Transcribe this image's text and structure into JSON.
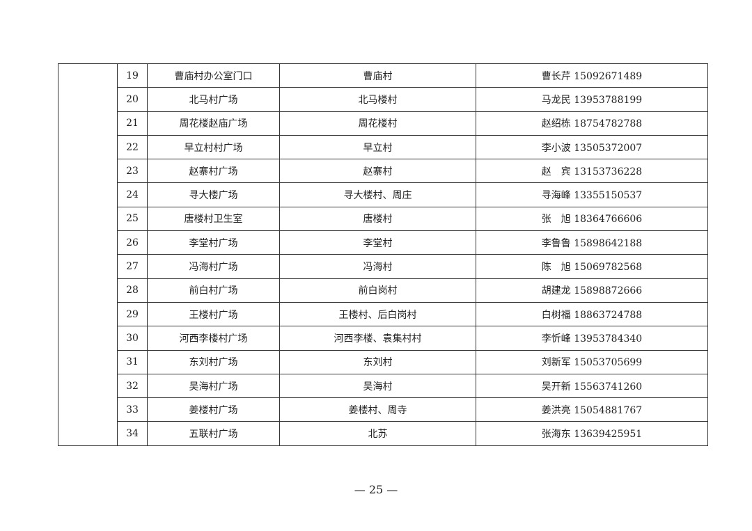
{
  "rows": [
    {
      "no": "19",
      "site": "曹庙村办公室门口",
      "village": "曹庙村",
      "contact": "曹长芹 15092671489"
    },
    {
      "no": "20",
      "site": "北马村广场",
      "village": "北马楼村",
      "contact": "马龙民 13953788199"
    },
    {
      "no": "21",
      "site": "周花楼赵庙广场",
      "village": "周花楼村",
      "contact": "赵绍栋 18754782788"
    },
    {
      "no": "22",
      "site": "早立村村广场",
      "village": "早立村",
      "contact": "李小波 13505372007"
    },
    {
      "no": "23",
      "site": "赵寨村广场",
      "village": "赵寨村",
      "contact": "赵　宾 13153736228"
    },
    {
      "no": "24",
      "site": "寻大楼广场",
      "village": "寻大楼村、周庄",
      "contact": "寻海峰 13355150537"
    },
    {
      "no": "25",
      "site": "唐楼村卫生室",
      "village": "唐楼村",
      "contact": "张　旭 18364766606"
    },
    {
      "no": "26",
      "site": "李堂村广场",
      "village": "李堂村",
      "contact": "李鲁鲁 15898642188"
    },
    {
      "no": "27",
      "site": "冯海村广场",
      "village": "冯海村",
      "contact": "陈　旭 15069782568"
    },
    {
      "no": "28",
      "site": "前白村广场",
      "village": "前白岗村",
      "contact": "胡建龙 15898872666"
    },
    {
      "no": "29",
      "site": "王楼村广场",
      "village": "王楼村、后白岗村",
      "contact": "白树福 18863724788"
    },
    {
      "no": "30",
      "site": "河西李楼村广场",
      "village": "河西李楼、袁集村村",
      "contact": "李忻峰 13953784340"
    },
    {
      "no": "31",
      "site": "东刘村广场",
      "village": "东刘村",
      "contact": "刘新军 15053705699"
    },
    {
      "no": "32",
      "site": "吴海村广场",
      "village": "吴海村",
      "contact": "吴开新 15563741260"
    },
    {
      "no": "33",
      "site": "姜楼村广场",
      "village": "姜楼村、周寺",
      "contact": "姜洪亮 15054881767"
    },
    {
      "no": "34",
      "site": "五联村广场",
      "village": "北苏",
      "contact": "张海东 13639425951"
    }
  ],
  "page_number": "— 25 —"
}
